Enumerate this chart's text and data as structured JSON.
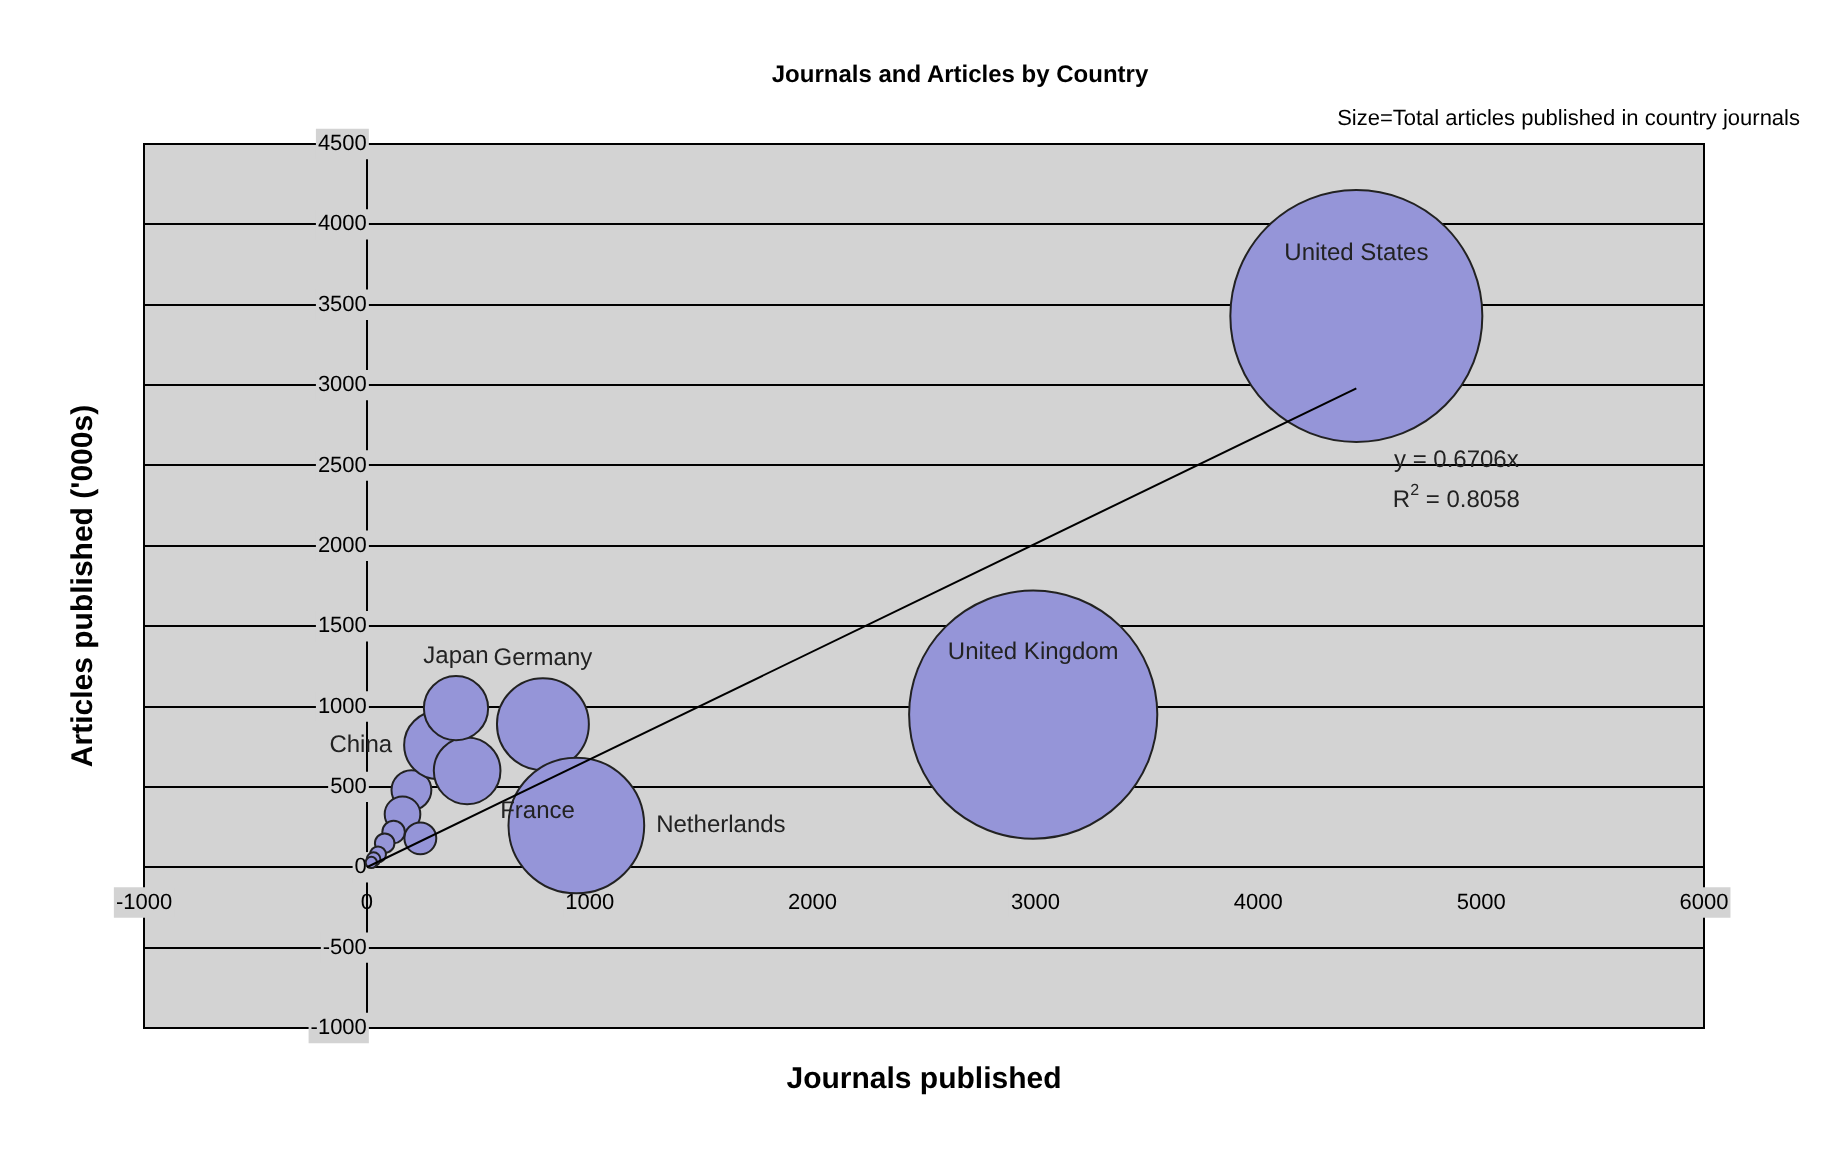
{
  "chart_data": {
    "type": "bubble",
    "title": "Journals and Articles by Country",
    "subtitle": "Size=Total articles published in country journals",
    "xlabel": "Journals published",
    "ylabel": "Articles published ('000s)",
    "series": [
      {
        "name": "United States",
        "color": "#9595d8",
        "x": [
          4440
        ],
        "values": [
          3430
        ],
        "sizes": [
          1
        ]
      },
      {
        "name": "United Kingdom",
        "color": "#9595d8",
        "x": [
          2990
        ],
        "values": [
          950
        ],
        "sizes": [
          0.97
        ]
      },
      {
        "name": "Netherlands",
        "color": "#9595d8",
        "x": [
          940
        ],
        "values": [
          260
        ],
        "sizes": [
          0.29
        ]
      },
      {
        "name": "Germany",
        "color": "#9595d8",
        "x": [
          790
        ],
        "values": [
          890
        ],
        "sizes": [
          0.133
        ]
      },
      {
        "name": "Japan",
        "color": "#9595d8",
        "x": [
          400
        ],
        "values": [
          990
        ],
        "sizes": [
          0.065
        ]
      },
      {
        "name": "France",
        "color": "#9595d8",
        "x": [
          450
        ],
        "values": [
          600
        ],
        "sizes": [
          0.07
        ]
      },
      {
        "name": "China",
        "color": "#9595d8",
        "x": [
          320
        ],
        "values": [
          760
        ],
        "sizes": [
          0.073
        ]
      },
      {
        "color": "#9595d8",
        "x": [
          200,
          160,
          240,
          120,
          80,
          50,
          30,
          20
        ],
        "values": [
          480,
          330,
          180,
          220,
          150,
          80,
          50,
          30
        ],
        "sizes": [
          0.025,
          0.02,
          0.016,
          0.008,
          0.006,
          0.004,
          0.003,
          0.002
        ]
      },
      {
        "type": "line",
        "color": "#000000",
        "x": [
          0,
          4440
        ],
        "values": [
          0,
          2980
        ]
      }
    ],
    "annotations": [
      "y = 0.6706x",
      "R$^{2}$ = 0.8058"
    ],
    "xlim": [
      -1000,
      6000
    ],
    "xticks": [
      -1000,
      0,
      1000,
      2000,
      3000,
      4000,
      5000,
      6000
    ],
    "ylim": [
      -1000,
      4500
    ],
    "yticks": [
      -1000,
      -500,
      0,
      500,
      1000,
      1500,
      2000,
      2500,
      3000,
      3500,
      4000,
      4500
    ],
    "grid": "y",
    "legend": false
  }
}
